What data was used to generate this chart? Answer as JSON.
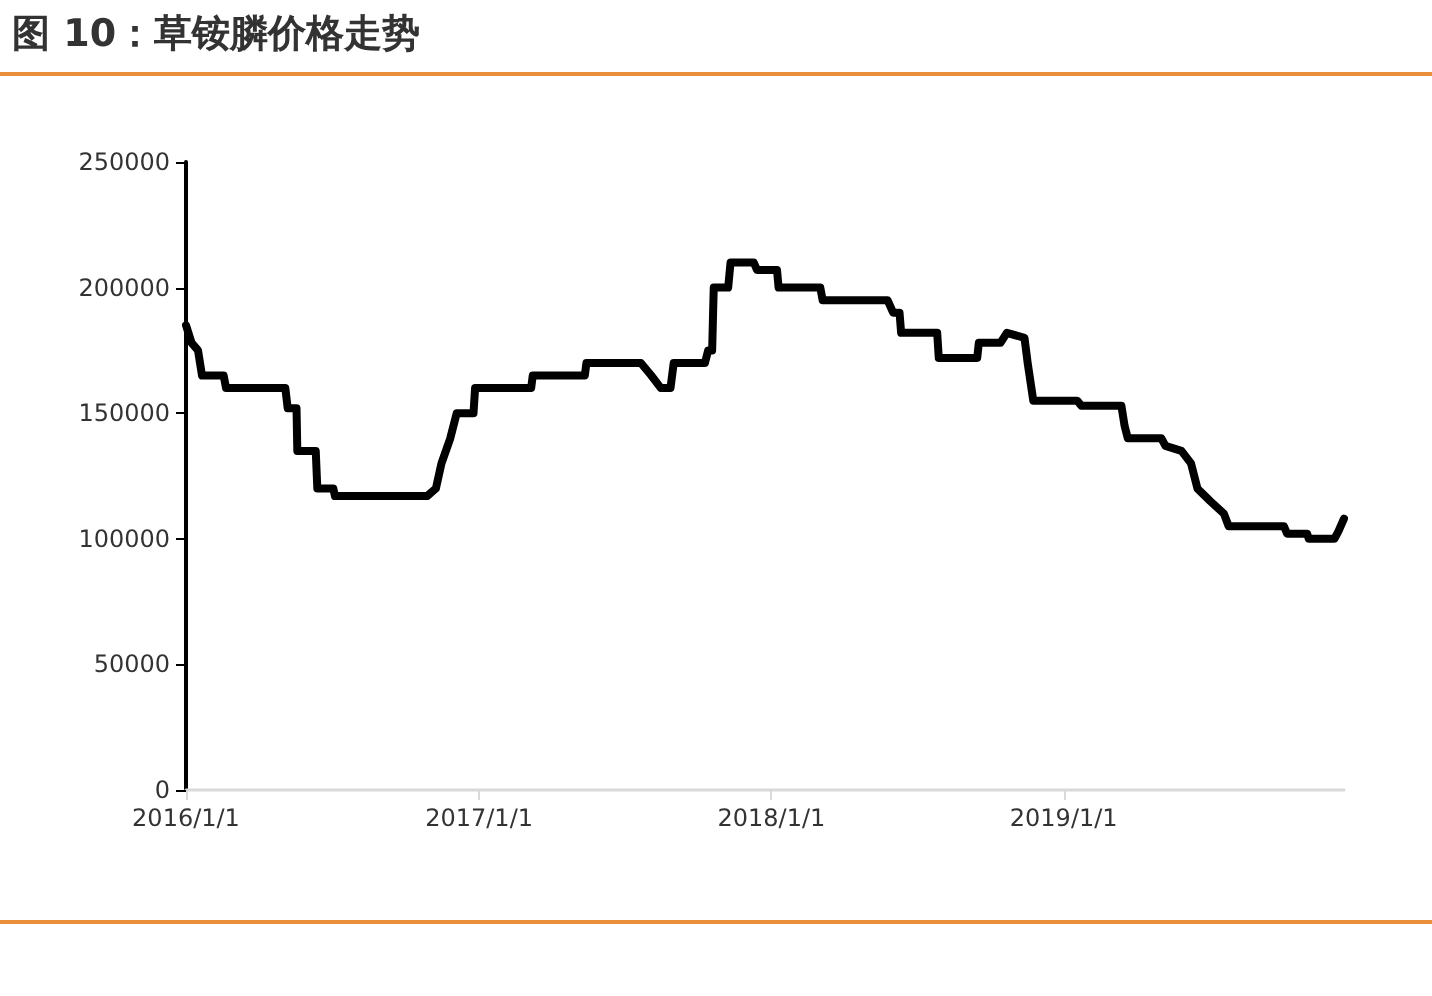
{
  "chart_data": {
    "type": "line",
    "title": "图 10：草铵膦价格走势",
    "series": [
      {
        "color": "#000000",
        "x": [
          "2016-01-01",
          "2016-01-08",
          "2016-01-16",
          "2016-01-21",
          "2016-02-17",
          "2016-02-20",
          "2016-05-04",
          "2016-05-07",
          "2016-05-18",
          "2016-05-19",
          "2016-06-11",
          "2016-06-13",
          "2016-07-03",
          "2016-07-05",
          "2016-10-28",
          "2016-11-08",
          "2016-11-15",
          "2016-11-26",
          "2016-12-04",
          "2016-12-25",
          "2016-12-27",
          "2017-03-07",
          "2017-03-09",
          "2017-05-13",
          "2017-05-15",
          "2017-07-22",
          "2017-08-04",
          "2017-08-16",
          "2017-08-28",
          "2017-09-01",
          "2017-10-10",
          "2017-10-14",
          "2017-10-19",
          "2017-10-21",
          "2017-11-08",
          "2017-11-11",
          "2017-12-10",
          "2017-12-14",
          "2018-01-08",
          "2018-01-10",
          "2018-03-03",
          "2018-03-06",
          "2018-05-26",
          "2018-06-02",
          "2018-06-10",
          "2018-06-12",
          "2018-07-27",
          "2018-07-29",
          "2018-09-15",
          "2018-09-17",
          "2018-10-14",
          "2018-10-22",
          "2018-11-13",
          "2018-11-17",
          "2018-11-24",
          "2019-01-18",
          "2019-01-23",
          "2019-03-14",
          "2019-03-18",
          "2019-03-22",
          "2019-05-03",
          "2019-05-08",
          "2019-05-28",
          "2019-06-09",
          "2019-06-17",
          "2019-07-03",
          "2019-07-20",
          "2019-07-26",
          "2019-10-03",
          "2019-10-07",
          "2019-11-01",
          "2019-11-03",
          "2019-12-05",
          "2019-12-10",
          "2019-12-17"
        ],
        "values": [
          185000,
          178000,
          175000,
          165000,
          165000,
          160000,
          160000,
          152000,
          152000,
          135000,
          135000,
          120000,
          120000,
          117000,
          117000,
          120000,
          130000,
          140000,
          150000,
          150000,
          160000,
          160000,
          165000,
          165000,
          170000,
          170000,
          165000,
          160000,
          160000,
          170000,
          170000,
          175000,
          175000,
          200000,
          200000,
          210000,
          210000,
          207000,
          207000,
          200000,
          200000,
          195000,
          195000,
          190000,
          190000,
          182000,
          182000,
          172000,
          172000,
          178000,
          178000,
          182000,
          180000,
          170000,
          155000,
          155000,
          153000,
          153000,
          145000,
          140000,
          140000,
          137000,
          135000,
          130000,
          120000,
          115000,
          110000,
          105000,
          105000,
          102000,
          102000,
          100000,
          100000,
          103000,
          108000
        ]
      }
    ],
    "xlim": [
      "2016-01-01",
      "2019-12-17"
    ],
    "xticks": [
      {
        "value": "2016-01-01",
        "label": "2016/1/1"
      },
      {
        "value": "2017-01-01",
        "label": "2017/1/1"
      },
      {
        "value": "2018-01-01",
        "label": "2018/1/1"
      },
      {
        "value": "2019-01-01",
        "label": "2019/1/1"
      }
    ],
    "ylim": [
      0,
      250000
    ],
    "yticks": [
      0,
      50000,
      100000,
      150000,
      200000,
      250000
    ],
    "grid": false,
    "marker": "none",
    "line_style": "solid"
  }
}
